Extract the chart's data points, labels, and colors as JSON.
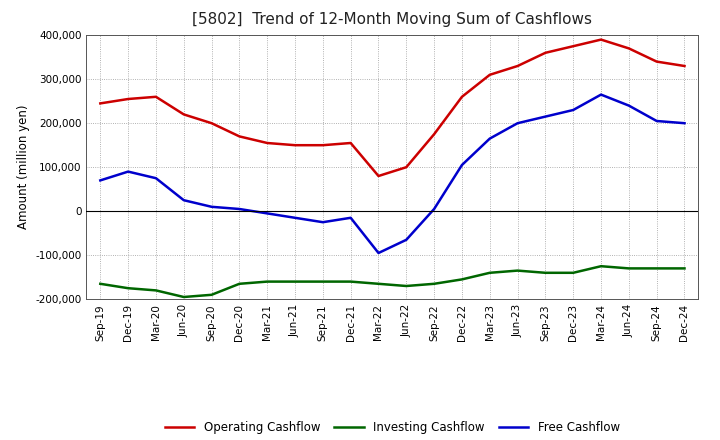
{
  "title": "[5802]  Trend of 12-Month Moving Sum of Cashflows",
  "ylabel": "Amount (million yen)",
  "ylim": [
    -200000,
    400000
  ],
  "yticks": [
    -200000,
    -100000,
    0,
    100000,
    200000,
    300000,
    400000
  ],
  "x_labels": [
    "Sep-19",
    "Dec-19",
    "Mar-20",
    "Jun-20",
    "Sep-20",
    "Dec-20",
    "Mar-21",
    "Jun-21",
    "Sep-21",
    "Dec-21",
    "Mar-22",
    "Jun-22",
    "Sep-22",
    "Dec-22",
    "Mar-23",
    "Jun-23",
    "Sep-23",
    "Dec-23",
    "Mar-24",
    "Jun-24",
    "Sep-24",
    "Dec-24"
  ],
  "operating": [
    245000,
    255000,
    260000,
    220000,
    200000,
    170000,
    155000,
    150000,
    150000,
    155000,
    80000,
    100000,
    175000,
    260000,
    310000,
    330000,
    360000,
    375000,
    390000,
    370000,
    340000,
    330000
  ],
  "investing": [
    -165000,
    -175000,
    -180000,
    -195000,
    -190000,
    -165000,
    -160000,
    -160000,
    -160000,
    -160000,
    -165000,
    -170000,
    -165000,
    -155000,
    -140000,
    -135000,
    -140000,
    -140000,
    -125000,
    -130000,
    -130000,
    -130000
  ],
  "free": [
    70000,
    90000,
    75000,
    25000,
    10000,
    5000,
    -5000,
    -15000,
    -25000,
    -15000,
    -95000,
    -65000,
    5000,
    105000,
    165000,
    200000,
    215000,
    230000,
    265000,
    240000,
    205000,
    200000
  ],
  "operating_color": "#cc0000",
  "investing_color": "#006600",
  "free_color": "#0000cc",
  "bg_color": "#ffffff",
  "plot_bg_color": "#ffffff",
  "grid_color": "#999999",
  "line_width": 1.8,
  "title_fontsize": 11,
  "tick_fontsize": 7.5,
  "ylabel_fontsize": 8.5,
  "legend_entries": [
    "Operating Cashflow",
    "Investing Cashflow",
    "Free Cashflow"
  ]
}
